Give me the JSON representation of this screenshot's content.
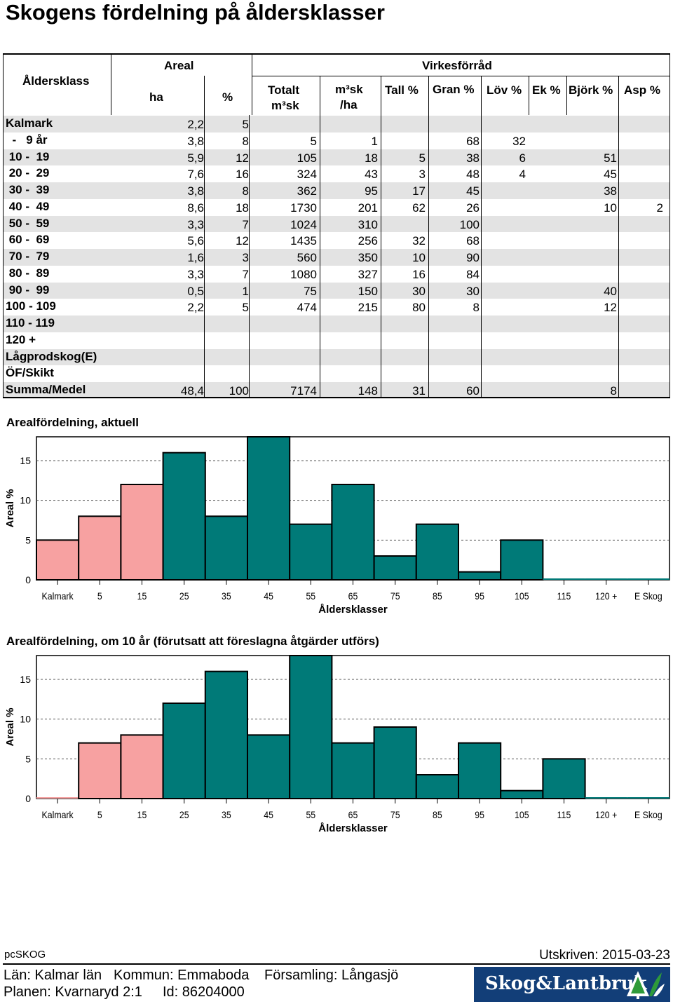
{
  "title": "Skogens fördelning på åldersklasser",
  "table": {
    "header": {
      "age_class": "Åldersklass",
      "areal": "Areal",
      "virkesforrad": "Virkesförråd",
      "ha": "ha",
      "pct": "%",
      "totalt_1": "Totalt",
      "totalt_2": "m³sk",
      "m3ha_1": "m³sk",
      "m3ha_2": "/ha",
      "tall": "Tall %",
      "gran": "Gran %",
      "lov": "Löv %",
      "ek": "Ek %",
      "bjork": "Björk %",
      "asp": "Asp %"
    },
    "rows": [
      {
        "label": "Kalmark",
        "ha": "2,2",
        "pct": "5",
        "totalt": "",
        "m3ha": "",
        "tall": "",
        "gran": "",
        "lov": "",
        "ek": "",
        "bjork": "",
        "asp": ""
      },
      {
        "label": "  -   9 år",
        "ha": "3,8",
        "pct": "8",
        "totalt": "5",
        "m3ha": "1",
        "tall": "",
        "gran": "68",
        "lov": "32",
        "ek": "",
        "bjork": "",
        "asp": ""
      },
      {
        "label": " 10 -  19",
        "ha": "5,9",
        "pct": "12",
        "totalt": "105",
        "m3ha": "18",
        "tall": "5",
        "gran": "38",
        "lov": "6",
        "ek": "",
        "bjork": "51",
        "asp": ""
      },
      {
        "label": " 20 -  29",
        "ha": "7,6",
        "pct": "16",
        "totalt": "324",
        "m3ha": "43",
        "tall": "3",
        "gran": "48",
        "lov": "4",
        "ek": "",
        "bjork": "45",
        "asp": ""
      },
      {
        "label": " 30 -  39",
        "ha": "3,8",
        "pct": "8",
        "totalt": "362",
        "m3ha": "95",
        "tall": "17",
        "gran": "45",
        "lov": "",
        "ek": "",
        "bjork": "38",
        "asp": ""
      },
      {
        "label": " 40 -  49",
        "ha": "8,6",
        "pct": "18",
        "totalt": "1730",
        "m3ha": "201",
        "tall": "62",
        "gran": "26",
        "lov": "",
        "ek": "",
        "bjork": "10",
        "asp": "2"
      },
      {
        "label": " 50 -  59",
        "ha": "3,3",
        "pct": "7",
        "totalt": "1024",
        "m3ha": "310",
        "tall": "",
        "gran": "100",
        "lov": "",
        "ek": "",
        "bjork": "",
        "asp": ""
      },
      {
        "label": " 60 -  69",
        "ha": "5,6",
        "pct": "12",
        "totalt": "1435",
        "m3ha": "256",
        "tall": "32",
        "gran": "68",
        "lov": "",
        "ek": "",
        "bjork": "",
        "asp": ""
      },
      {
        "label": " 70 -  79",
        "ha": "1,6",
        "pct": "3",
        "totalt": "560",
        "m3ha": "350",
        "tall": "10",
        "gran": "90",
        "lov": "",
        "ek": "",
        "bjork": "",
        "asp": ""
      },
      {
        "label": " 80 -  89",
        "ha": "3,3",
        "pct": "7",
        "totalt": "1080",
        "m3ha": "327",
        "tall": "16",
        "gran": "84",
        "lov": "",
        "ek": "",
        "bjork": "",
        "asp": ""
      },
      {
        "label": " 90 -  99",
        "ha": "0,5",
        "pct": "1",
        "totalt": "75",
        "m3ha": "150",
        "tall": "30",
        "gran": "30",
        "lov": "",
        "ek": "",
        "bjork": "40",
        "asp": ""
      },
      {
        "label": "100 - 109",
        "ha": "2,2",
        "pct": "5",
        "totalt": "474",
        "m3ha": "215",
        "tall": "80",
        "gran": "8",
        "lov": "",
        "ek": "",
        "bjork": "12",
        "asp": ""
      },
      {
        "label": "110 - 119",
        "ha": "",
        "pct": "",
        "totalt": "",
        "m3ha": "",
        "tall": "",
        "gran": "",
        "lov": "",
        "ek": "",
        "bjork": "",
        "asp": ""
      },
      {
        "label": "120 +",
        "ha": "",
        "pct": "",
        "totalt": "",
        "m3ha": "",
        "tall": "",
        "gran": "",
        "lov": "",
        "ek": "",
        "bjork": "",
        "asp": ""
      },
      {
        "label": "Lågprodskog(E)",
        "ha": "",
        "pct": "",
        "totalt": "",
        "m3ha": "",
        "tall": "",
        "gran": "",
        "lov": "",
        "ek": "",
        "bjork": "",
        "asp": ""
      },
      {
        "label": "ÖF/Skikt",
        "ha": "",
        "pct": "",
        "totalt": "",
        "m3ha": "",
        "tall": "",
        "gran": "",
        "lov": "",
        "ek": "",
        "bjork": "",
        "asp": ""
      },
      {
        "label": "Summa/Medel",
        "ha": "48,4",
        "pct": "100",
        "totalt": "7174",
        "m3ha": "148",
        "tall": "31",
        "gran": "60",
        "lov": "",
        "ek": "",
        "bjork": "8",
        "asp": ""
      }
    ]
  },
  "colors": {
    "young": "#f7a1a1",
    "mature": "#007a78",
    "stripe": "#e3e3e3",
    "brand": "#123e78"
  },
  "chart_data": [
    {
      "type": "bar",
      "title": "Arealfördelning, aktuell",
      "xlabel": "Åldersklasser",
      "ylabel": "Areal %",
      "ylim": [
        0,
        18
      ],
      "yticks": [
        0,
        5,
        10,
        15
      ],
      "grid": true,
      "categories": [
        "Kalmark",
        "5",
        "15",
        "25",
        "35",
        "45",
        "55",
        "65",
        "75",
        "85",
        "95",
        "105",
        "115",
        "120 +",
        "E Skog"
      ],
      "values": [
        5,
        8,
        12,
        16,
        8,
        18,
        7,
        12,
        3,
        7,
        1,
        5,
        0,
        0,
        0
      ],
      "bar_colors": [
        "young",
        "young",
        "young",
        "mature",
        "mature",
        "mature",
        "mature",
        "mature",
        "mature",
        "mature",
        "mature",
        "mature",
        "mature",
        "mature",
        "mature"
      ]
    },
    {
      "type": "bar",
      "title": "Arealfördelning, om 10 år (förutsatt att föreslagna åtgärder utförs)",
      "xlabel": "Åldersklasser",
      "ylabel": "Areal %",
      "ylim": [
        0,
        18
      ],
      "yticks": [
        0,
        5,
        10,
        15
      ],
      "grid": true,
      "categories": [
        "Kalmark",
        "5",
        "15",
        "25",
        "35",
        "45",
        "55",
        "65",
        "75",
        "85",
        "95",
        "105",
        "115",
        "120 +",
        "E Skog"
      ],
      "values": [
        0,
        7,
        8,
        12,
        16,
        8,
        18,
        7,
        9,
        3,
        7,
        1,
        5,
        0,
        0
      ],
      "bar_colors": [
        "young",
        "young",
        "young",
        "mature",
        "mature",
        "mature",
        "mature",
        "mature",
        "mature",
        "mature",
        "mature",
        "mature",
        "mature",
        "mature",
        "mature"
      ]
    }
  ],
  "footer": {
    "app": "pcSKOG",
    "printed": "Utskriven: 2015-03-23",
    "lan": "Län: Kalmar län",
    "kommun": "Kommun: Emmaboda",
    "forsamling": "Församling: Långasjö",
    "planen": "Planen: Kvarnaryd 2:1",
    "id": "Id: 86204000",
    "brand": "Skog&Lantbruk"
  }
}
